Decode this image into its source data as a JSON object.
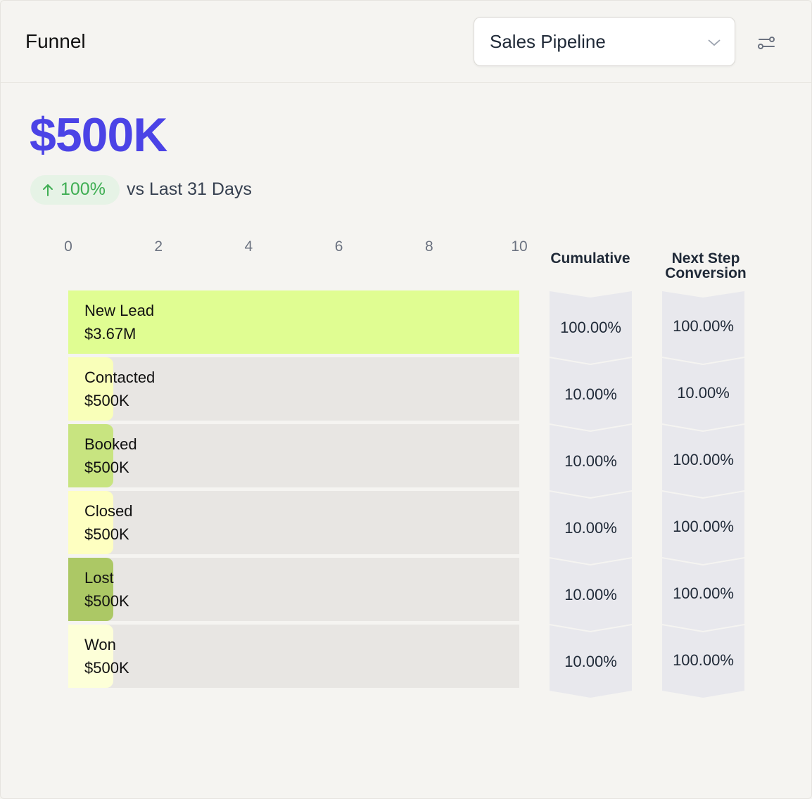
{
  "header": {
    "title": "Funnel",
    "dropdown_value": "Sales Pipeline"
  },
  "kpi": {
    "value": "$500K",
    "change": "100%",
    "comparison": "vs Last 31 Days"
  },
  "axis_ticks": [
    "0",
    "2",
    "4",
    "6",
    "8",
    "10"
  ],
  "columns": {
    "cumulative": "Cumulative",
    "next_step": "Next Step Conversion"
  },
  "colors": {
    "accent": "#4b43e6",
    "positive": "#3fae53",
    "track": "#e8e6e3",
    "chevron": "#e8e8ed"
  },
  "chart_data": {
    "type": "bar",
    "xlim": [
      0,
      10
    ],
    "stages": [
      {
        "label": "New Lead",
        "value_text": "$3.67M",
        "bar_value": 10,
        "color": "#e0fd92",
        "cumulative": "100.00%",
        "next_step": "100.00%"
      },
      {
        "label": "Contacted",
        "value_text": "$500K",
        "bar_value": 1,
        "color": "#f9ffb9",
        "cumulative": "10.00%",
        "next_step": "10.00%"
      },
      {
        "label": "Booked",
        "value_text": "$500K",
        "bar_value": 1,
        "color": "#c8e480",
        "cumulative": "10.00%",
        "next_step": "100.00%"
      },
      {
        "label": "Closed",
        "value_text": "$500K",
        "bar_value": 1,
        "color": "#feffc1",
        "cumulative": "10.00%",
        "next_step": "100.00%"
      },
      {
        "label": "Lost",
        "value_text": "$500K",
        "bar_value": 1,
        "color": "#acc865",
        "cumulative": "10.00%",
        "next_step": "100.00%"
      },
      {
        "label": "Won",
        "value_text": "$500K",
        "bar_value": 1,
        "color": "#fdffd8",
        "cumulative": "10.00%",
        "next_step": "100.00%"
      }
    ]
  }
}
